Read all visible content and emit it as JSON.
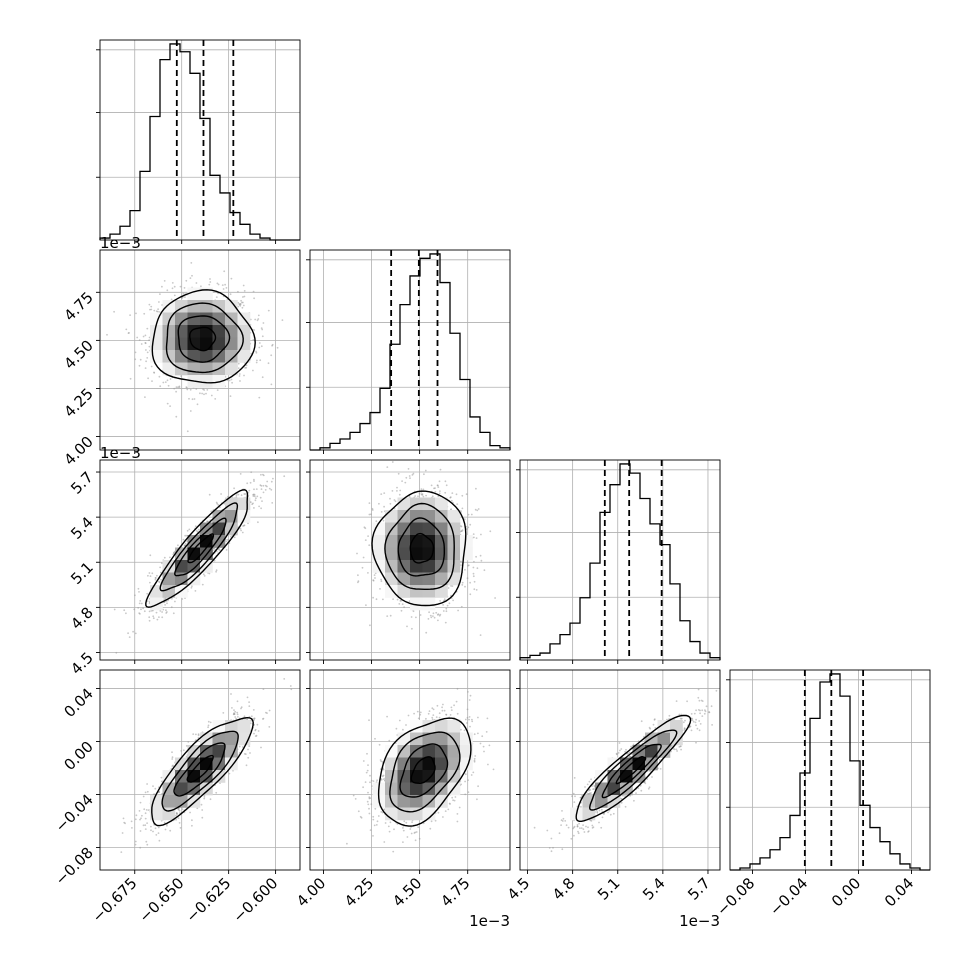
{
  "chart_data": {
    "type": "corner",
    "grid": true,
    "n_params": 4,
    "params": [
      {
        "unit_scale": "1e-3",
        "range": [
          -0.6935,
          -0.587
        ],
        "ticks": [
          -0.675,
          -0.65,
          -0.625,
          -0.6
        ],
        "tick_labels": [
          "−0.675",
          "−0.650",
          "−0.625",
          "−0.600"
        ]
      },
      {
        "unit_scale": "1e-3",
        "range": [
          3.93,
          4.97
        ],
        "ticks": [
          4.0,
          4.25,
          4.5,
          4.75
        ],
        "tick_labels": [
          "4.00",
          "4.25",
          "4.50",
          "4.75"
        ]
      },
      {
        "unit_scale": "1e-3",
        "range": [
          4.45,
          5.78
        ],
        "ticks": [
          4.5,
          4.8,
          5.1,
          5.4,
          5.7
        ],
        "tick_labels": [
          "4.5",
          "4.8",
          "5.1",
          "5.4",
          "5.7"
        ]
      },
      {
        "unit_scale": "",
        "range": [
          -0.097,
          0.054
        ],
        "ticks": [
          -0.08,
          -0.04,
          0.0,
          0.04
        ],
        "tick_labels": [
          "−0.08",
          "−0.04",
          "0.00",
          "0.04"
        ]
      }
    ],
    "offset_labels": [
      {
        "panel": [
          1,
          0
        ],
        "axis": "y",
        "text": "1e−3"
      },
      {
        "panel": [
          2,
          0
        ],
        "axis": "y",
        "text": "1e−3"
      },
      {
        "panel": [
          3,
          1
        ],
        "axis": "x",
        "text": "1e−3"
      },
      {
        "panel": [
          3,
          2
        ],
        "axis": "x",
        "text": "1e−3"
      }
    ],
    "histograms": [
      {
        "param": 0,
        "bins": 20,
        "range": [
          -0.6935,
          -0.587
        ],
        "counts": [
          1,
          3,
          7,
          15,
          35,
          63,
          92,
          100,
          96,
          85,
          62,
          33,
          24,
          14,
          8,
          3,
          1,
          0,
          0,
          0
        ],
        "quantiles": [
          -0.6526,
          -0.6384,
          -0.6225
        ]
      },
      {
        "param": 1,
        "bins": 20,
        "range": [
          3.93,
          4.97
        ],
        "counts": [
          0,
          1,
          3,
          5,
          8,
          12,
          17,
          28,
          48,
          66,
          79,
          87,
          89,
          76,
          53,
          32,
          15,
          8,
          2,
          1
        ],
        "quantiles": [
          4.352,
          4.496,
          4.593
        ]
      },
      {
        "param": 2,
        "bins": 20,
        "range": [
          4.45,
          5.78
        ],
        "counts": [
          1,
          2,
          3,
          7,
          11,
          16,
          27,
          42,
          64,
          76,
          85,
          81,
          70,
          59,
          50,
          33,
          17,
          8,
          3,
          1
        ],
        "quantiles": [
          5.014,
          5.176,
          5.392
        ]
      },
      {
        "param": 3,
        "bins": 20,
        "range": [
          -0.097,
          0.054
        ],
        "counts": [
          0,
          1,
          3,
          6,
          10,
          16,
          27,
          48,
          75,
          93,
          97,
          86,
          54,
          32,
          21,
          14,
          8,
          3,
          1,
          0
        ],
        "quantiles": [
          -0.0405,
          -0.0205,
          0.0035
        ]
      }
    ],
    "pairs": [
      {
        "x": 0,
        "y": 1,
        "mean": [
          -0.639,
          4.51
        ],
        "sd": [
          0.0135,
          0.12
        ],
        "rho": 0.0
      },
      {
        "x": 0,
        "y": 2,
        "mean": [
          -0.64,
          5.19
        ],
        "sd": [
          0.0135,
          0.19
        ],
        "rho": 0.9
      },
      {
        "x": 1,
        "y": 2,
        "mean": [
          4.51,
          5.19
        ],
        "sd": [
          0.12,
          0.19
        ],
        "rho": 0.0
      },
      {
        "x": 0,
        "y": 3,
        "mean": [
          -0.64,
          -0.021
        ],
        "sd": [
          0.0135,
          0.02
        ],
        "rho": 0.83
      },
      {
        "x": 1,
        "y": 3,
        "mean": [
          4.52,
          -0.022
        ],
        "sd": [
          0.12,
          0.02
        ],
        "rho": 0.42
      },
      {
        "x": 2,
        "y": 3,
        "mean": [
          5.19,
          -0.021
        ],
        "sd": [
          0.19,
          0.02
        ],
        "rho": 0.91
      }
    ],
    "contour_sigmas": [
      0.5,
      1.0,
      1.5,
      2.0
    ]
  }
}
